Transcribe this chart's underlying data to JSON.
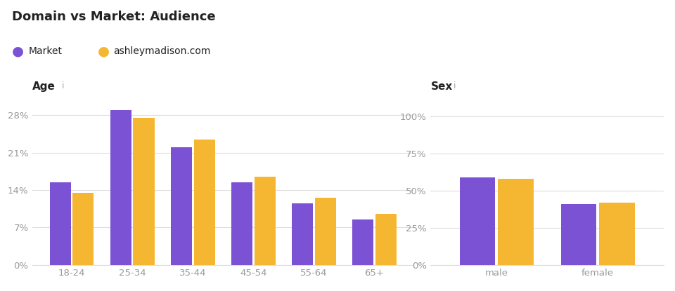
{
  "title": "Domain vs Market: Audience",
  "title_info": "i",
  "legend": [
    {
      "label": "Market",
      "color": "#7b52d3"
    },
    {
      "label": "ashleymadison.com",
      "color": "#f5b731"
    }
  ],
  "age_section_label": "Age",
  "age_info": "i",
  "age_categories": [
    "18-24",
    "25-34",
    "35-44",
    "45-54",
    "55-64",
    "65+"
  ],
  "age_market": [
    15.5,
    29.0,
    22.0,
    15.5,
    11.5,
    8.5
  ],
  "age_domain": [
    13.5,
    27.5,
    23.5,
    16.5,
    12.5,
    9.5
  ],
  "age_yticks": [
    0,
    7,
    14,
    21,
    28
  ],
  "age_ylim": [
    0,
    30.5
  ],
  "sex_section_label": "Sex",
  "sex_info": "i",
  "sex_categories": [
    "male",
    "female"
  ],
  "sex_market": [
    59.0,
    41.0
  ],
  "sex_domain": [
    58.0,
    42.0
  ],
  "sex_yticks": [
    0,
    25,
    50,
    75,
    100
  ],
  "sex_ylim": [
    0,
    110
  ],
  "purple": "#7b52d3",
  "gold": "#f5b731",
  "bg_color": "#ffffff",
  "axis_label_color": "#222222",
  "tick_color": "#999999",
  "grid_color": "#dddddd",
  "info_color": "#aaaaaa",
  "bar_width": 0.35,
  "bar_gap": 0.03
}
